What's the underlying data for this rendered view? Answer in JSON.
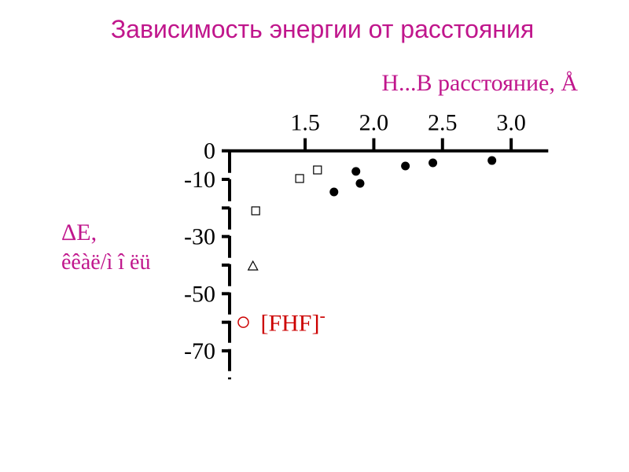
{
  "chart_data": {
    "type": "scatter",
    "title": "Зависимость энергии от расстояния",
    "x_label": "H...B  расстояние, Å",
    "y_label": [
      "ΔE,",
      "êêàë/ì î ëü"
    ],
    "xlim": [
      0.95,
      3.27
    ],
    "xticks": [
      {
        "value": 1.5,
        "label": "1.5"
      },
      {
        "value": 2.0,
        "label": "2.0"
      },
      {
        "value": 2.5,
        "label": "2.5"
      },
      {
        "value": 3.0,
        "label": "3.0"
      }
    ],
    "ylim": [
      -80,
      0
    ],
    "yticks": [
      0,
      -10,
      -30,
      -50,
      -70
    ],
    "yminor_ticks": [
      -20,
      -40,
      -60
    ],
    "x_axis_position": "top",
    "series": [
      {
        "marker": "square",
        "color": "#000000",
        "x": [
          1.46,
          1.59,
          1.14
        ],
        "values": [
          -9.7,
          -6.7,
          -21.0
        ]
      },
      {
        "marker": "triangle",
        "color": "#000000",
        "x": [
          1.12
        ],
        "values": [
          -40.3
        ]
      },
      {
        "marker": "filled-circle",
        "color": "#000000",
        "x": [
          1.71,
          1.87,
          1.9,
          2.23,
          2.43,
          2.86
        ],
        "values": [
          -14.4,
          -7.2,
          -11.4,
          -5.3,
          -4.2,
          -3.4
        ]
      },
      {
        "marker": "open-circle",
        "color": "#cc0000",
        "label": "[FHF]",
        "label_superscript": "-",
        "x": [
          1.05
        ],
        "values": [
          -60
        ]
      }
    ]
  }
}
